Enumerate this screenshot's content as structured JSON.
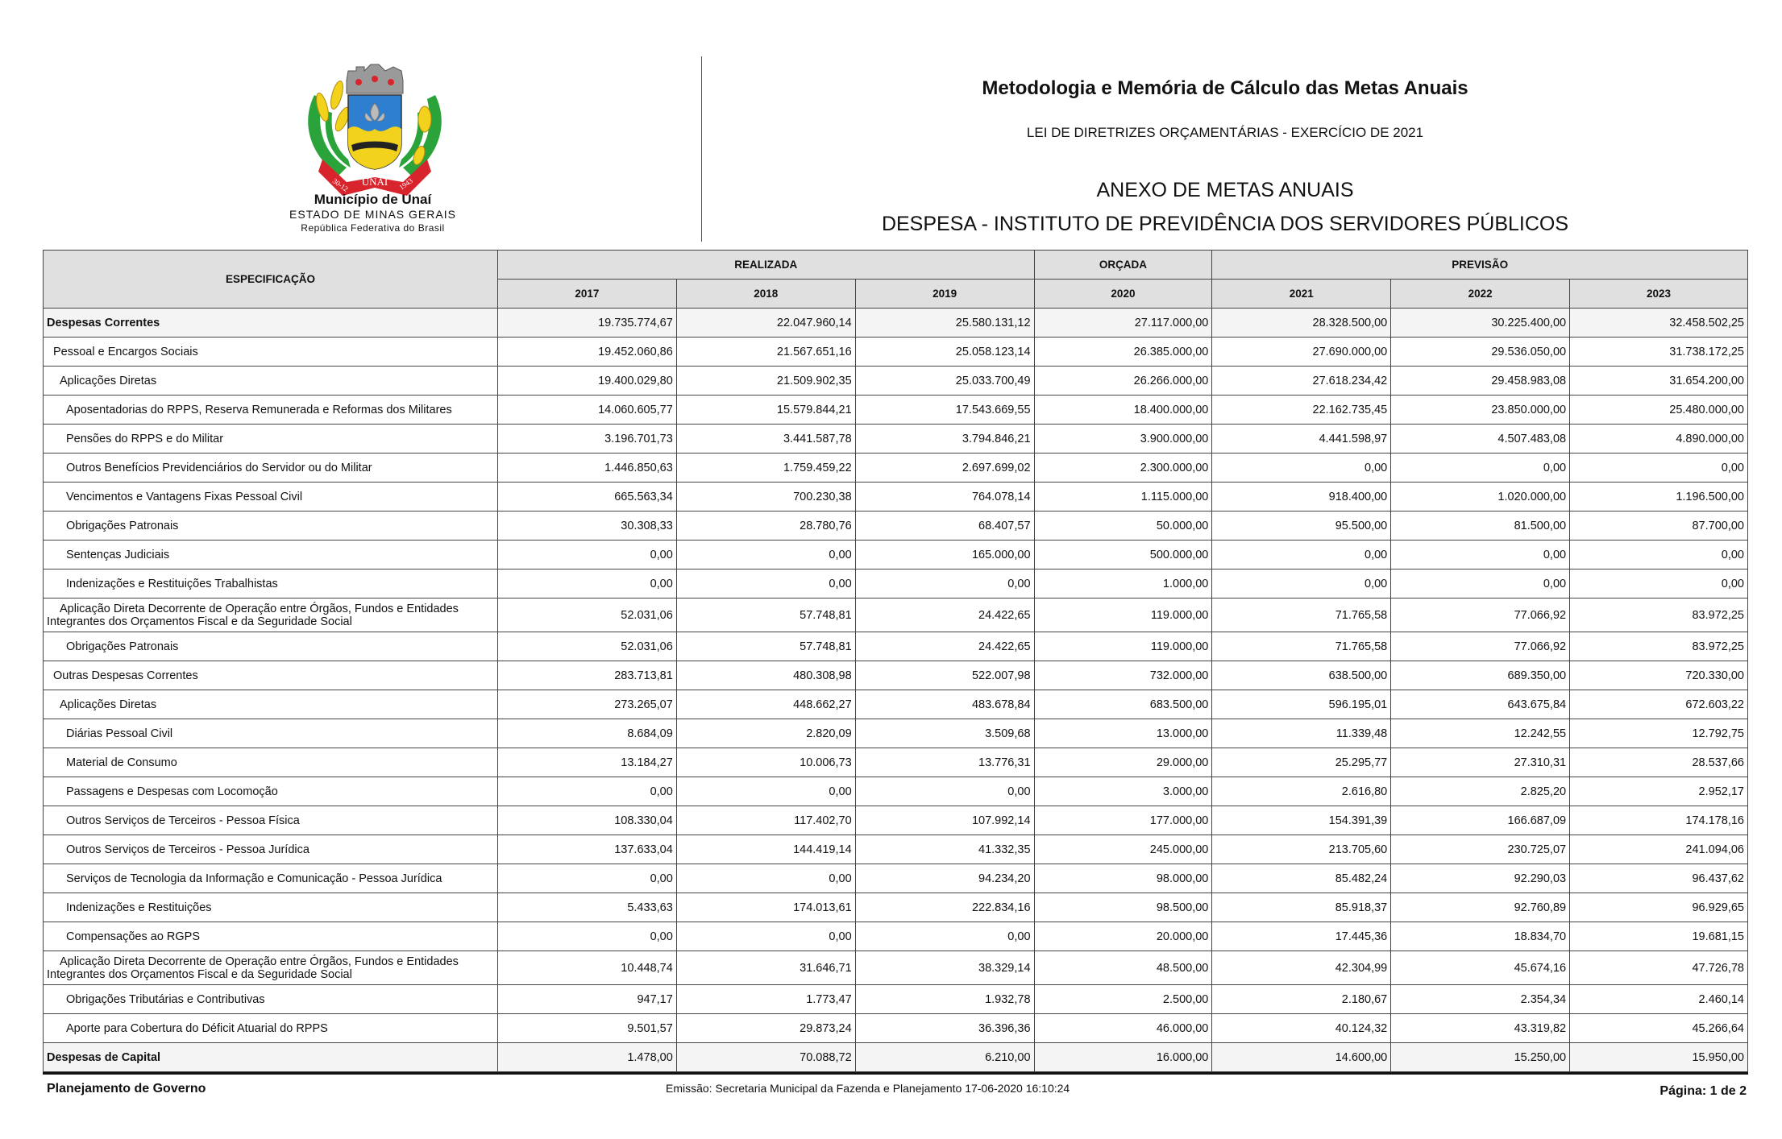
{
  "logo": {
    "banner_text": "UNAÍ",
    "date_left": "30-12",
    "date_right": "1943"
  },
  "municipality": {
    "name": "Município de Unaí",
    "state": "ESTADO DE MINAS GERAIS",
    "country": "República Federativa do Brasil"
  },
  "header": {
    "title": "Metodologia e Memória de Cálculo das Metas Anuais",
    "subtitle": "LEI DE DIRETRIZES ORÇAMENTÁRIAS - EXERCÍCIO DE 2021",
    "annex": "ANEXO DE METAS ANUAIS",
    "section": "DESPESA - INSTITUTO DE PREVIDÊNCIA DOS SERVIDORES PÚBLICOS"
  },
  "table": {
    "spec_header": "ESPECIFICAÇÃO",
    "groups": [
      "REALIZADA",
      "ORÇADA",
      "PREVISÃO"
    ],
    "years": [
      "2017",
      "2018",
      "2019",
      "2020",
      "2021",
      "2022",
      "2023"
    ],
    "rows": [
      {
        "label": "Despesas Correntes",
        "level": 0,
        "bold": true,
        "values": [
          "19.735.774,67",
          "22.047.960,14",
          "25.580.131,12",
          "27.117.000,00",
          "28.328.500,00",
          "30.225.400,00",
          "32.458.502,25"
        ]
      },
      {
        "label": "Pessoal e Encargos Sociais",
        "level": 1,
        "values": [
          "19.452.060,86",
          "21.567.651,16",
          "25.058.123,14",
          "26.385.000,00",
          "27.690.000,00",
          "29.536.050,00",
          "31.738.172,25"
        ]
      },
      {
        "label": "Aplicações Diretas",
        "level": 2,
        "values": [
          "19.400.029,80",
          "21.509.902,35",
          "25.033.700,49",
          "26.266.000,00",
          "27.618.234,42",
          "29.458.983,08",
          "31.654.200,00"
        ]
      },
      {
        "label": "Aposentadorias do RPPS, Reserva Remunerada e Reformas dos Militares",
        "level": 3,
        "values": [
          "14.060.605,77",
          "15.579.844,21",
          "17.543.669,55",
          "18.400.000,00",
          "22.162.735,45",
          "23.850.000,00",
          "25.480.000,00"
        ]
      },
      {
        "label": "Pensões do RPPS e do Militar",
        "level": 3,
        "values": [
          "3.196.701,73",
          "3.441.587,78",
          "3.794.846,21",
          "3.900.000,00",
          "4.441.598,97",
          "4.507.483,08",
          "4.890.000,00"
        ]
      },
      {
        "label": "Outros Benefícios Previdenciários do Servidor ou do Militar",
        "level": 3,
        "values": [
          "1.446.850,63",
          "1.759.459,22",
          "2.697.699,02",
          "2.300.000,00",
          "0,00",
          "0,00",
          "0,00"
        ]
      },
      {
        "label": "Vencimentos e Vantagens Fixas  Pessoal Civil",
        "level": 3,
        "values": [
          "665.563,34",
          "700.230,38",
          "764.078,14",
          "1.115.000,00",
          "918.400,00",
          "1.020.000,00",
          "1.196.500,00"
        ]
      },
      {
        "label": "Obrigações Patronais",
        "level": 3,
        "values": [
          "30.308,33",
          "28.780,76",
          "68.407,57",
          "50.000,00",
          "95.500,00",
          "81.500,00",
          "87.700,00"
        ]
      },
      {
        "label": "Sentenças Judiciais",
        "level": 3,
        "values": [
          "0,00",
          "0,00",
          "165.000,00",
          "500.000,00",
          "0,00",
          "0,00",
          "0,00"
        ]
      },
      {
        "label": "Indenizações e Restituições Trabalhistas",
        "level": 3,
        "values": [
          "0,00",
          "0,00",
          "0,00",
          "1.000,00",
          "0,00",
          "0,00",
          "0,00"
        ]
      },
      {
        "label": "Aplicação Direta Decorrente de Operação entre Órgãos, Fundos e Entidades Integrantes dos Orçamentos Fiscal e da Seguridade Social",
        "level": 2,
        "double": true,
        "values": [
          "52.031,06",
          "57.748,81",
          "24.422,65",
          "119.000,00",
          "71.765,58",
          "77.066,92",
          "83.972,25"
        ]
      },
      {
        "label": "Obrigações Patronais",
        "level": 3,
        "values": [
          "52.031,06",
          "57.748,81",
          "24.422,65",
          "119.000,00",
          "71.765,58",
          "77.066,92",
          "83.972,25"
        ]
      },
      {
        "label": "Outras Despesas Correntes",
        "level": 1,
        "values": [
          "283.713,81",
          "480.308,98",
          "522.007,98",
          "732.000,00",
          "638.500,00",
          "689.350,00",
          "720.330,00"
        ]
      },
      {
        "label": "Aplicações Diretas",
        "level": 2,
        "values": [
          "273.265,07",
          "448.662,27",
          "483.678,84",
          "683.500,00",
          "596.195,01",
          "643.675,84",
          "672.603,22"
        ]
      },
      {
        "label": "Diárias  Pessoal Civil",
        "level": 3,
        "values": [
          "8.684,09",
          "2.820,09",
          "3.509,68",
          "13.000,00",
          "11.339,48",
          "12.242,55",
          "12.792,75"
        ]
      },
      {
        "label": "Material de Consumo",
        "level": 3,
        "values": [
          "13.184,27",
          "10.006,73",
          "13.776,31",
          "29.000,00",
          "25.295,77",
          "27.310,31",
          "28.537,66"
        ]
      },
      {
        "label": "Passagens e Despesas com Locomoção",
        "level": 3,
        "values": [
          "0,00",
          "0,00",
          "0,00",
          "3.000,00",
          "2.616,80",
          "2.825,20",
          "2.952,17"
        ]
      },
      {
        "label": "Outros Serviços de Terceiros - Pessoa Física",
        "level": 3,
        "values": [
          "108.330,04",
          "117.402,70",
          "107.992,14",
          "177.000,00",
          "154.391,39",
          "166.687,09",
          "174.178,16"
        ]
      },
      {
        "label": "Outros Serviços de Terceiros - Pessoa Jurídica",
        "level": 3,
        "values": [
          "137.633,04",
          "144.419,14",
          "41.332,35",
          "245.000,00",
          "213.705,60",
          "230.725,07",
          "241.094,06"
        ]
      },
      {
        "label": "Serviços de Tecnologia da Informação e Comunicação - Pessoa Jurídica",
        "level": 3,
        "values": [
          "0,00",
          "0,00",
          "94.234,20",
          "98.000,00",
          "85.482,24",
          "92.290,03",
          "96.437,62"
        ]
      },
      {
        "label": "Indenizações e Restituições",
        "level": 3,
        "values": [
          "5.433,63",
          "174.013,61",
          "222.834,16",
          "98.500,00",
          "85.918,37",
          "92.760,89",
          "96.929,65"
        ]
      },
      {
        "label": "Compensações ao RGPS",
        "level": 3,
        "values": [
          "0,00",
          "0,00",
          "0,00",
          "20.000,00",
          "17.445,36",
          "18.834,70",
          "19.681,15"
        ]
      },
      {
        "label": "Aplicação Direta Decorrente de Operação entre Órgãos, Fundos e Entidades Integrantes dos Orçamentos Fiscal e da Seguridade Social",
        "level": 2,
        "double": true,
        "values": [
          "10.448,74",
          "31.646,71",
          "38.329,14",
          "48.500,00",
          "42.304,99",
          "45.674,16",
          "47.726,78"
        ]
      },
      {
        "label": "Obrigações Tributárias e Contributivas",
        "level": 3,
        "values": [
          "947,17",
          "1.773,47",
          "1.932,78",
          "2.500,00",
          "2.180,67",
          "2.354,34",
          "2.460,14"
        ]
      },
      {
        "label": "Aporte para Cobertura do Déficit Atuarial do RPPS",
        "level": 3,
        "values": [
          "9.501,57",
          "29.873,24",
          "36.396,36",
          "46.000,00",
          "40.124,32",
          "43.319,82",
          "45.266,64"
        ]
      },
      {
        "label": "Despesas de Capital",
        "level": 0,
        "bold": true,
        "values": [
          "1.478,00",
          "70.088,72",
          "6.210,00",
          "16.000,00",
          "14.600,00",
          "15.250,00",
          "15.950,00"
        ]
      }
    ]
  },
  "footer": {
    "left": "Planejamento de Governo",
    "center": "Emissão: Secretaria Municipal da Fazenda e Planejamento 17-06-2020 16:10:24",
    "right": "Página: 1 de 2"
  },
  "colors": {
    "header_bg": "#e0e0e0",
    "total_row_bg": "#f4f4f4",
    "shield_blue": "#2f7fd0",
    "ribbon_red": "#d8242c",
    "leaf_green": "#2aa43a",
    "gold": "#f2d21c"
  }
}
